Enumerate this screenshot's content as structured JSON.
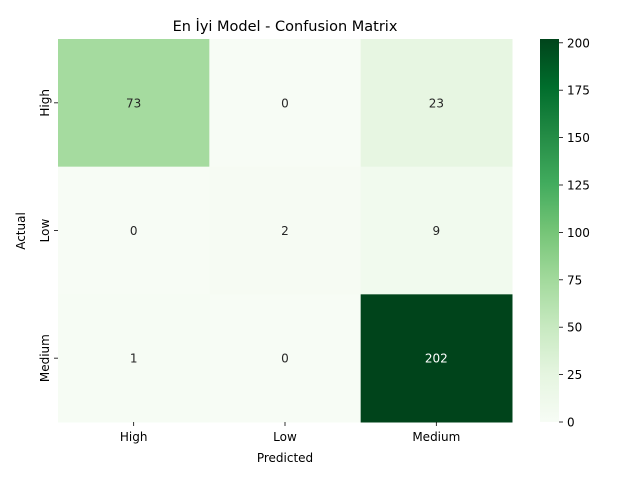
{
  "chart_data": {
    "type": "heatmap",
    "title": "En İyi Model - Confusion Matrix",
    "xlabel": "Predicted",
    "ylabel": "Actual",
    "x_categories": [
      "High",
      "Low",
      "Medium"
    ],
    "y_categories": [
      "High",
      "Low",
      "Medium"
    ],
    "values": [
      [
        73,
        0,
        23
      ],
      [
        0,
        2,
        9
      ],
      [
        1,
        0,
        202
      ]
    ],
    "colormap": "Greens",
    "colorbar": {
      "range": [
        0,
        202
      ],
      "ticks": [
        0,
        25,
        50,
        75,
        100,
        125,
        150,
        175,
        200
      ]
    },
    "annotations": true,
    "grid": false
  }
}
